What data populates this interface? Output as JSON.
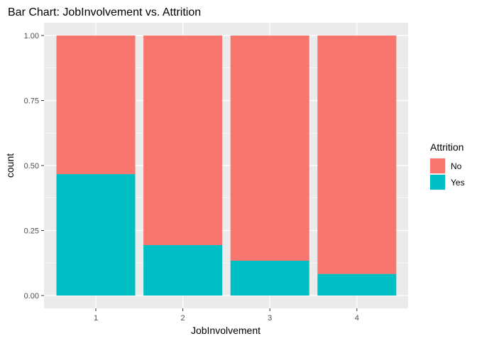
{
  "chart_data": {
    "type": "bar",
    "stacked": true,
    "title": "Bar Chart: JobInvolvement vs. Attrition",
    "xlabel": "JobInvolvement",
    "ylabel": "count",
    "categories": [
      "1",
      "2",
      "3",
      "4"
    ],
    "series": [
      {
        "name": "No",
        "color": "#F8766D",
        "values": [
          0.533,
          0.806,
          0.866,
          0.917
        ]
      },
      {
        "name": "Yes",
        "color": "#00BFC4",
        "values": [
          0.467,
          0.194,
          0.134,
          0.083
        ]
      }
    ],
    "stack_order": [
      "Yes",
      "No"
    ],
    "ylim": [
      0,
      1
    ],
    "yticks": [
      0.0,
      0.25,
      0.5,
      0.75,
      1.0
    ],
    "ytick_labels": [
      "0.00",
      "0.25",
      "0.50",
      "0.75",
      "1.00"
    ],
    "grid": true,
    "panel_background": "#EBEBEB",
    "grid_color": "#FFFFFF",
    "legend": {
      "title": "Attrition",
      "position": "right",
      "entries": [
        "No",
        "Yes"
      ]
    }
  }
}
